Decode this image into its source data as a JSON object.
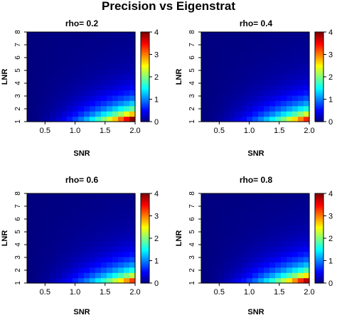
{
  "figure": {
    "title": "Precision vs Eigenstrat"
  },
  "chart_data": [
    {
      "type": "heatmap",
      "title": "rho= 0.2",
      "xlabel": "SNR",
      "ylabel": "LNR",
      "xlim": [
        0.2,
        2.0
      ],
      "ylim": [
        1,
        8
      ],
      "xticks": [
        "0.5",
        "1.0",
        "1.5",
        "2.0"
      ],
      "yticks": [
        "1",
        "2",
        "3",
        "4",
        "5",
        "6",
        "7",
        "8"
      ],
      "colorbar": {
        "min": 0,
        "max": 4,
        "ticks": [
          "0",
          "1",
          "2",
          "3",
          "4"
        ]
      },
      "colormap": [
        "#00007f",
        "#0000ff",
        "#007fff",
        "#00ffff",
        "#7fff7f",
        "#ffff00",
        "#ff7f00",
        "#ff0000",
        "#7f0000"
      ],
      "grid": false,
      "value_range": [
        0,
        3.6
      ]
    },
    {
      "type": "heatmap",
      "title": "rho= 0.4",
      "xlabel": "SNR",
      "ylabel": "LNR",
      "xlim": [
        0.2,
        2.0
      ],
      "ylim": [
        1,
        8
      ],
      "xticks": [
        "0.5",
        "1.0",
        "1.5",
        "2.0"
      ],
      "yticks": [
        "1",
        "2",
        "3",
        "4",
        "5",
        "6",
        "7",
        "8"
      ],
      "colorbar": {
        "min": 0,
        "max": 4,
        "ticks": [
          "0",
          "1",
          "2",
          "3",
          "4"
        ]
      },
      "colormap": [
        "#00007f",
        "#0000ff",
        "#007fff",
        "#00ffff",
        "#7fff7f",
        "#ffff00",
        "#ff7f00",
        "#ff0000",
        "#7f0000"
      ],
      "grid": false,
      "value_range": [
        0,
        3.0
      ]
    },
    {
      "type": "heatmap",
      "title": "rho= 0.6",
      "xlabel": "SNR",
      "ylabel": "LNR",
      "xlim": [
        0.2,
        2.0
      ],
      "ylim": [
        1,
        8
      ],
      "xticks": [
        "0.5",
        "1.0",
        "1.5",
        "2.0"
      ],
      "yticks": [
        "1",
        "2",
        "3",
        "4",
        "5",
        "6",
        "7",
        "8"
      ],
      "colorbar": {
        "min": 0,
        "max": 4,
        "ticks": [
          "0",
          "1",
          "2",
          "3",
          "4"
        ]
      },
      "colormap": [
        "#00007f",
        "#0000ff",
        "#007fff",
        "#00ffff",
        "#7fff7f",
        "#ffff00",
        "#ff7f00",
        "#ff0000",
        "#7f0000"
      ],
      "grid": false,
      "value_range": [
        0,
        2.9
      ]
    },
    {
      "type": "heatmap",
      "title": "rho= 0.8",
      "xlabel": "SNR",
      "ylabel": "LNR",
      "xlim": [
        0.2,
        2.0
      ],
      "ylim": [
        1,
        8
      ],
      "xticks": [
        "0.5",
        "1.0",
        "1.5",
        "2.0"
      ],
      "yticks": [
        "1",
        "2",
        "3",
        "4",
        "5",
        "6",
        "7",
        "8"
      ],
      "colorbar": {
        "min": 0,
        "max": 4,
        "ticks": [
          "0",
          "1",
          "2",
          "3",
          "4"
        ]
      },
      "colormap": [
        "#00007f",
        "#0000ff",
        "#007fff",
        "#00ffff",
        "#7fff7f",
        "#ffff00",
        "#ff7f00",
        "#ff0000",
        "#7f0000"
      ],
      "grid": false,
      "value_range": [
        0,
        3.4
      ]
    }
  ]
}
